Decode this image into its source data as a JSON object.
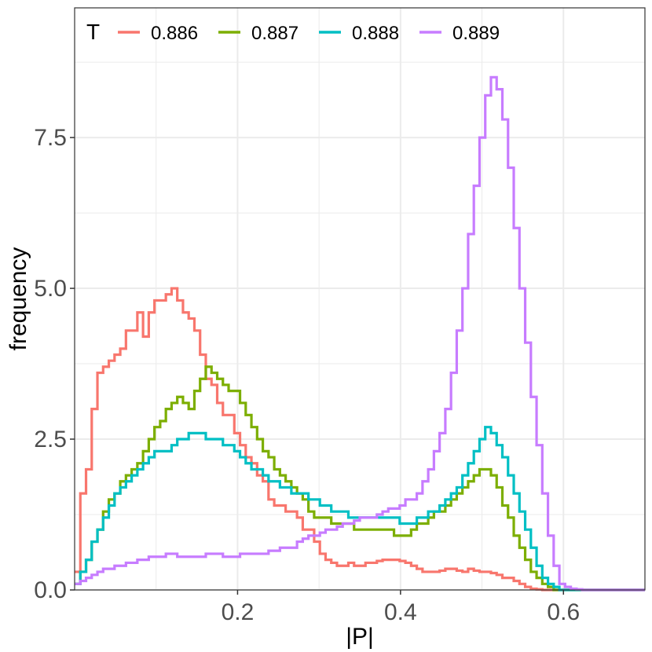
{
  "chart_data": {
    "type": "line",
    "style": "step-histogram",
    "xlabel": "|P|",
    "ylabel": "frequency",
    "xlim": [
      0.0,
      0.7
    ],
    "ylim": [
      0,
      9.65
    ],
    "x_ticks": [
      0.2,
      0.4,
      0.6
    ],
    "x_tick_labels": [
      "0.2",
      "0.4",
      "0.6"
    ],
    "y_ticks": [
      0,
      2.5,
      5,
      7.5
    ],
    "y_tick_labels": [
      "0.0",
      "2.5",
      "5.0",
      "7.5"
    ],
    "grid": true,
    "legend": {
      "title": "T",
      "placement": "top-left"
    },
    "bin_width": 0.007,
    "x": [
      0.0035,
      0.0105,
      0.0175,
      0.0245,
      0.0315,
      0.0385,
      0.0455,
      0.0525,
      0.0595,
      0.0665,
      0.0735,
      0.0805,
      0.0875,
      0.0945,
      0.1015,
      0.1085,
      0.1155,
      0.1225,
      0.1295,
      0.1365,
      0.1435,
      0.1505,
      0.1575,
      0.1645,
      0.1715,
      0.1785,
      0.1855,
      0.1925,
      0.1995,
      0.2065,
      0.2135,
      0.2205,
      0.2275,
      0.2345,
      0.2415,
      0.2485,
      0.2555,
      0.2625,
      0.2695,
      0.2765,
      0.2835,
      0.2905,
      0.2975,
      0.3045,
      0.3115,
      0.3185,
      0.3255,
      0.3325,
      0.3395,
      0.3465,
      0.3535,
      0.3605,
      0.3675,
      0.3745,
      0.3815,
      0.3885,
      0.3955,
      0.4025,
      0.4095,
      0.4165,
      0.4235,
      0.4305,
      0.4375,
      0.4445,
      0.4515,
      0.4585,
      0.4655,
      0.4725,
      0.4795,
      0.4865,
      0.4935,
      0.5005,
      0.5075,
      0.5145,
      0.5215,
      0.5285,
      0.5355,
      0.5425,
      0.5495,
      0.5565,
      0.5635,
      0.5705,
      0.5775,
      0.5845,
      0.5915,
      0.5985,
      0.6055,
      0.6125,
      0.6195,
      0.6265,
      0.6335,
      0.6405,
      0.6475,
      0.6545,
      0.6615,
      0.6685,
      0.6755,
      0.6825,
      0.6895,
      0.6965
    ],
    "series": [
      {
        "name": "0.886",
        "color": "#F8766D",
        "values": [
          0.3,
          1.6,
          2.0,
          3.0,
          3.6,
          3.7,
          3.8,
          3.9,
          4.0,
          4.3,
          4.3,
          4.6,
          4.2,
          4.6,
          4.8,
          4.8,
          4.9,
          5.0,
          4.8,
          4.6,
          4.5,
          4.3,
          3.9,
          3.5,
          3.4,
          3.1,
          2.9,
          2.9,
          2.6,
          2.4,
          2.2,
          2.1,
          1.9,
          1.8,
          1.5,
          1.4,
          1.4,
          1.3,
          1.3,
          1.2,
          1.0,
          1.0,
          0.8,
          0.6,
          0.5,
          0.45,
          0.4,
          0.4,
          0.45,
          0.4,
          0.4,
          0.45,
          0.45,
          0.48,
          0.5,
          0.5,
          0.5,
          0.48,
          0.45,
          0.4,
          0.35,
          0.3,
          0.3,
          0.3,
          0.32,
          0.35,
          0.35,
          0.32,
          0.3,
          0.35,
          0.32,
          0.3,
          0.3,
          0.28,
          0.25,
          0.2,
          0.2,
          0.15,
          0.1,
          0.05,
          0.02,
          0.01,
          0.0,
          0.0,
          0.0,
          0.0,
          0.0,
          0.0,
          0.0,
          0.0,
          0.0,
          0.0,
          0.0,
          0.0,
          0.0,
          0.0,
          0.0,
          0.0,
          0.0,
          0.0
        ]
      },
      {
        "name": "0.887",
        "color": "#7CAE00",
        "values": [
          0.1,
          0.3,
          0.5,
          0.8,
          1.0,
          1.3,
          1.5,
          1.6,
          1.8,
          1.9,
          2.0,
          2.1,
          2.3,
          2.5,
          2.7,
          2.8,
          3.0,
          3.1,
          3.2,
          3.1,
          3.0,
          3.3,
          3.5,
          3.7,
          3.6,
          3.5,
          3.4,
          3.3,
          3.3,
          3.1,
          2.9,
          2.7,
          2.5,
          2.3,
          2.2,
          2.0,
          1.9,
          1.8,
          1.7,
          1.6,
          1.5,
          1.3,
          1.2,
          1.2,
          1.2,
          1.1,
          1.1,
          1.1,
          1.1,
          1.0,
          1.0,
          1.0,
          1.0,
          1.0,
          1.0,
          1.0,
          0.9,
          0.9,
          0.9,
          1.0,
          1.1,
          1.1,
          1.2,
          1.3,
          1.3,
          1.4,
          1.5,
          1.6,
          1.7,
          1.8,
          1.9,
          2.0,
          2.0,
          1.9,
          1.7,
          1.4,
          1.2,
          0.9,
          0.7,
          0.5,
          0.3,
          0.2,
          0.1,
          0.05,
          0.0,
          0.0,
          0.0,
          0.0,
          0.0,
          0.0,
          0.0,
          0.0,
          0.0,
          0.0,
          0.0,
          0.0,
          0.0,
          0.0,
          0.0,
          0.0
        ]
      },
      {
        "name": "0.888",
        "color": "#00BFC4",
        "values": [
          0.1,
          0.3,
          0.5,
          0.8,
          1.0,
          1.2,
          1.4,
          1.6,
          1.7,
          1.8,
          1.9,
          2.0,
          2.1,
          2.2,
          2.3,
          2.3,
          2.3,
          2.4,
          2.5,
          2.5,
          2.6,
          2.6,
          2.6,
          2.5,
          2.5,
          2.5,
          2.4,
          2.4,
          2.3,
          2.2,
          2.1,
          2.0,
          2.0,
          1.9,
          1.8,
          1.8,
          1.7,
          1.7,
          1.6,
          1.6,
          1.6,
          1.5,
          1.5,
          1.4,
          1.4,
          1.3,
          1.3,
          1.3,
          1.2,
          1.2,
          1.2,
          1.2,
          1.2,
          1.2,
          1.2,
          1.2,
          1.2,
          1.1,
          1.1,
          1.1,
          1.2,
          1.2,
          1.3,
          1.3,
          1.4,
          1.5,
          1.6,
          1.7,
          1.9,
          2.1,
          2.3,
          2.5,
          2.7,
          2.6,
          2.4,
          2.2,
          1.9,
          1.6,
          1.3,
          1.0,
          0.7,
          0.4,
          0.2,
          0.1,
          0.05,
          0.0,
          0.0,
          0.0,
          0.0,
          0.0,
          0.0,
          0.0,
          0.0,
          0.0,
          0.0,
          0.0,
          0.0,
          0.0,
          0.0,
          0.0
        ]
      },
      {
        "name": "0.889",
        "color": "#C77CFF",
        "values": [
          0.1,
          0.15,
          0.2,
          0.25,
          0.3,
          0.35,
          0.35,
          0.4,
          0.4,
          0.45,
          0.45,
          0.5,
          0.5,
          0.55,
          0.55,
          0.55,
          0.6,
          0.6,
          0.55,
          0.55,
          0.55,
          0.55,
          0.55,
          0.6,
          0.6,
          0.6,
          0.55,
          0.55,
          0.55,
          0.6,
          0.6,
          0.6,
          0.6,
          0.6,
          0.65,
          0.65,
          0.7,
          0.7,
          0.7,
          0.8,
          0.85,
          0.9,
          0.9,
          0.95,
          1.0,
          1.0,
          1.05,
          1.1,
          1.1,
          1.15,
          1.2,
          1.2,
          1.2,
          1.25,
          1.3,
          1.35,
          1.35,
          1.4,
          1.5,
          1.5,
          1.6,
          1.8,
          2.0,
          2.3,
          2.6,
          3.0,
          3.6,
          4.3,
          5.0,
          5.9,
          6.7,
          7.5,
          8.2,
          8.5,
          8.3,
          7.8,
          7.0,
          6.0,
          5.0,
          4.1,
          3.2,
          2.4,
          1.6,
          0.9,
          0.4,
          0.1,
          0.05,
          0.02,
          0.01,
          0.0,
          0.0,
          0.0,
          0.0,
          0.0,
          0.0,
          0.0,
          0.0,
          0.0,
          0.0,
          0.0
        ]
      }
    ]
  }
}
